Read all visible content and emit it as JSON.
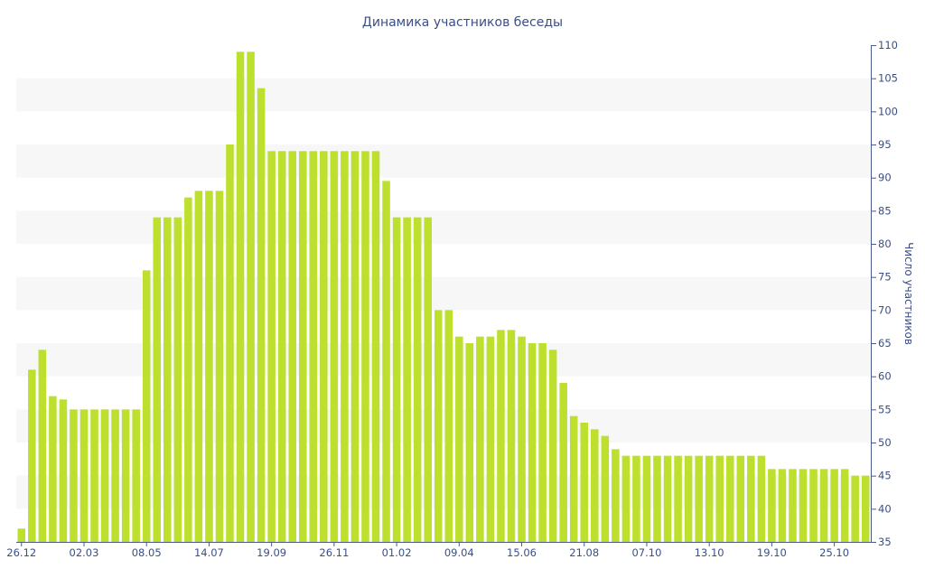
{
  "chart_data": {
    "type": "bar",
    "title": "Динамика участников беседы",
    "ylabel": "Число участников",
    "xlabel": "",
    "ylim": [
      35,
      110
    ],
    "y_ticks": [
      35,
      40,
      45,
      50,
      55,
      60,
      65,
      70,
      75,
      80,
      85,
      90,
      95,
      100,
      105,
      110
    ],
    "y_axis_position": "right",
    "grid": "alternating horizontal bands",
    "x_tick_labels": [
      {
        "label": "26.12",
        "index": 0
      },
      {
        "label": "02.03",
        "index": 6
      },
      {
        "label": "08.05",
        "index": 12
      },
      {
        "label": "14.07",
        "index": 18
      },
      {
        "label": "19.09",
        "index": 24
      },
      {
        "label": "26.11",
        "index": 30
      },
      {
        "label": "01.02",
        "index": 36
      },
      {
        "label": "09.04",
        "index": 42
      },
      {
        "label": "15.06",
        "index": 48
      },
      {
        "label": "21.08",
        "index": 54
      },
      {
        "label": "07.10",
        "index": 60
      },
      {
        "label": "13.10",
        "index": 66
      },
      {
        "label": "19.10",
        "index": 72
      },
      {
        "label": "25.10",
        "index": 78
      }
    ],
    "values": [
      37,
      61,
      64,
      57,
      56.5,
      55,
      55,
      55,
      55,
      55,
      55,
      55,
      76,
      84,
      84,
      84,
      87,
      88,
      88,
      88,
      95,
      109,
      109,
      103.5,
      94,
      94,
      94,
      94,
      94,
      94,
      94,
      94,
      94,
      94,
      94,
      89.5,
      84,
      84,
      84,
      84,
      70,
      70,
      66,
      65,
      66,
      66,
      67,
      67,
      66,
      65,
      65,
      64,
      59,
      54,
      53,
      52,
      51,
      49,
      48,
      48,
      48,
      48,
      48,
      48,
      48,
      48,
      48,
      48,
      48,
      48,
      48,
      48,
      46,
      46,
      46,
      46,
      46,
      46,
      46,
      46,
      45,
      45
    ],
    "colors": {
      "bar": "#bddf2d",
      "text": "#3b4f86",
      "band": "#f7f7f7",
      "axis": "#4a5a8a"
    }
  }
}
